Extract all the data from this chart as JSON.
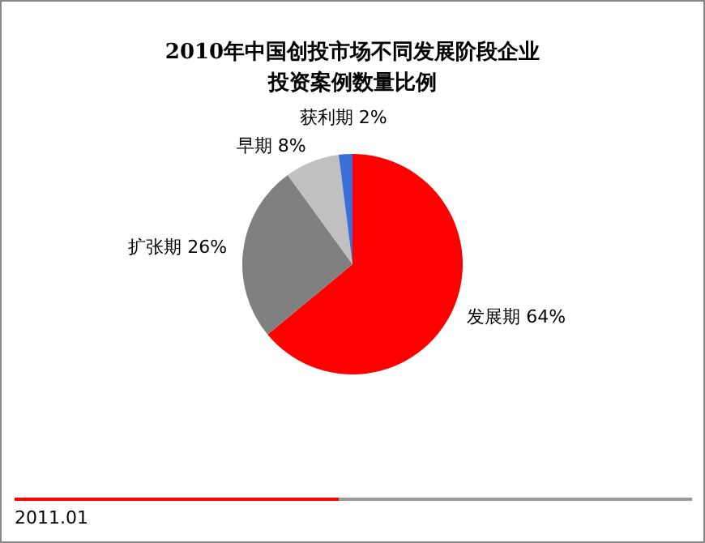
{
  "chart_data": {
    "type": "pie",
    "title": "2010年中国创投市场不同发展阶段企业投资案例数量比例",
    "categories": [
      "发展期",
      "扩张期",
      "早期",
      "获利期"
    ],
    "values": [
      64,
      26,
      8,
      2
    ],
    "colors": [
      "#ff0000",
      "#808080",
      "#c0c0c0",
      "#3a6fd8"
    ],
    "value_labels": [
      "64%",
      "26%",
      "8%",
      "2%"
    ],
    "legend": false,
    "annotations": [
      "2011.01"
    ]
  }
}
